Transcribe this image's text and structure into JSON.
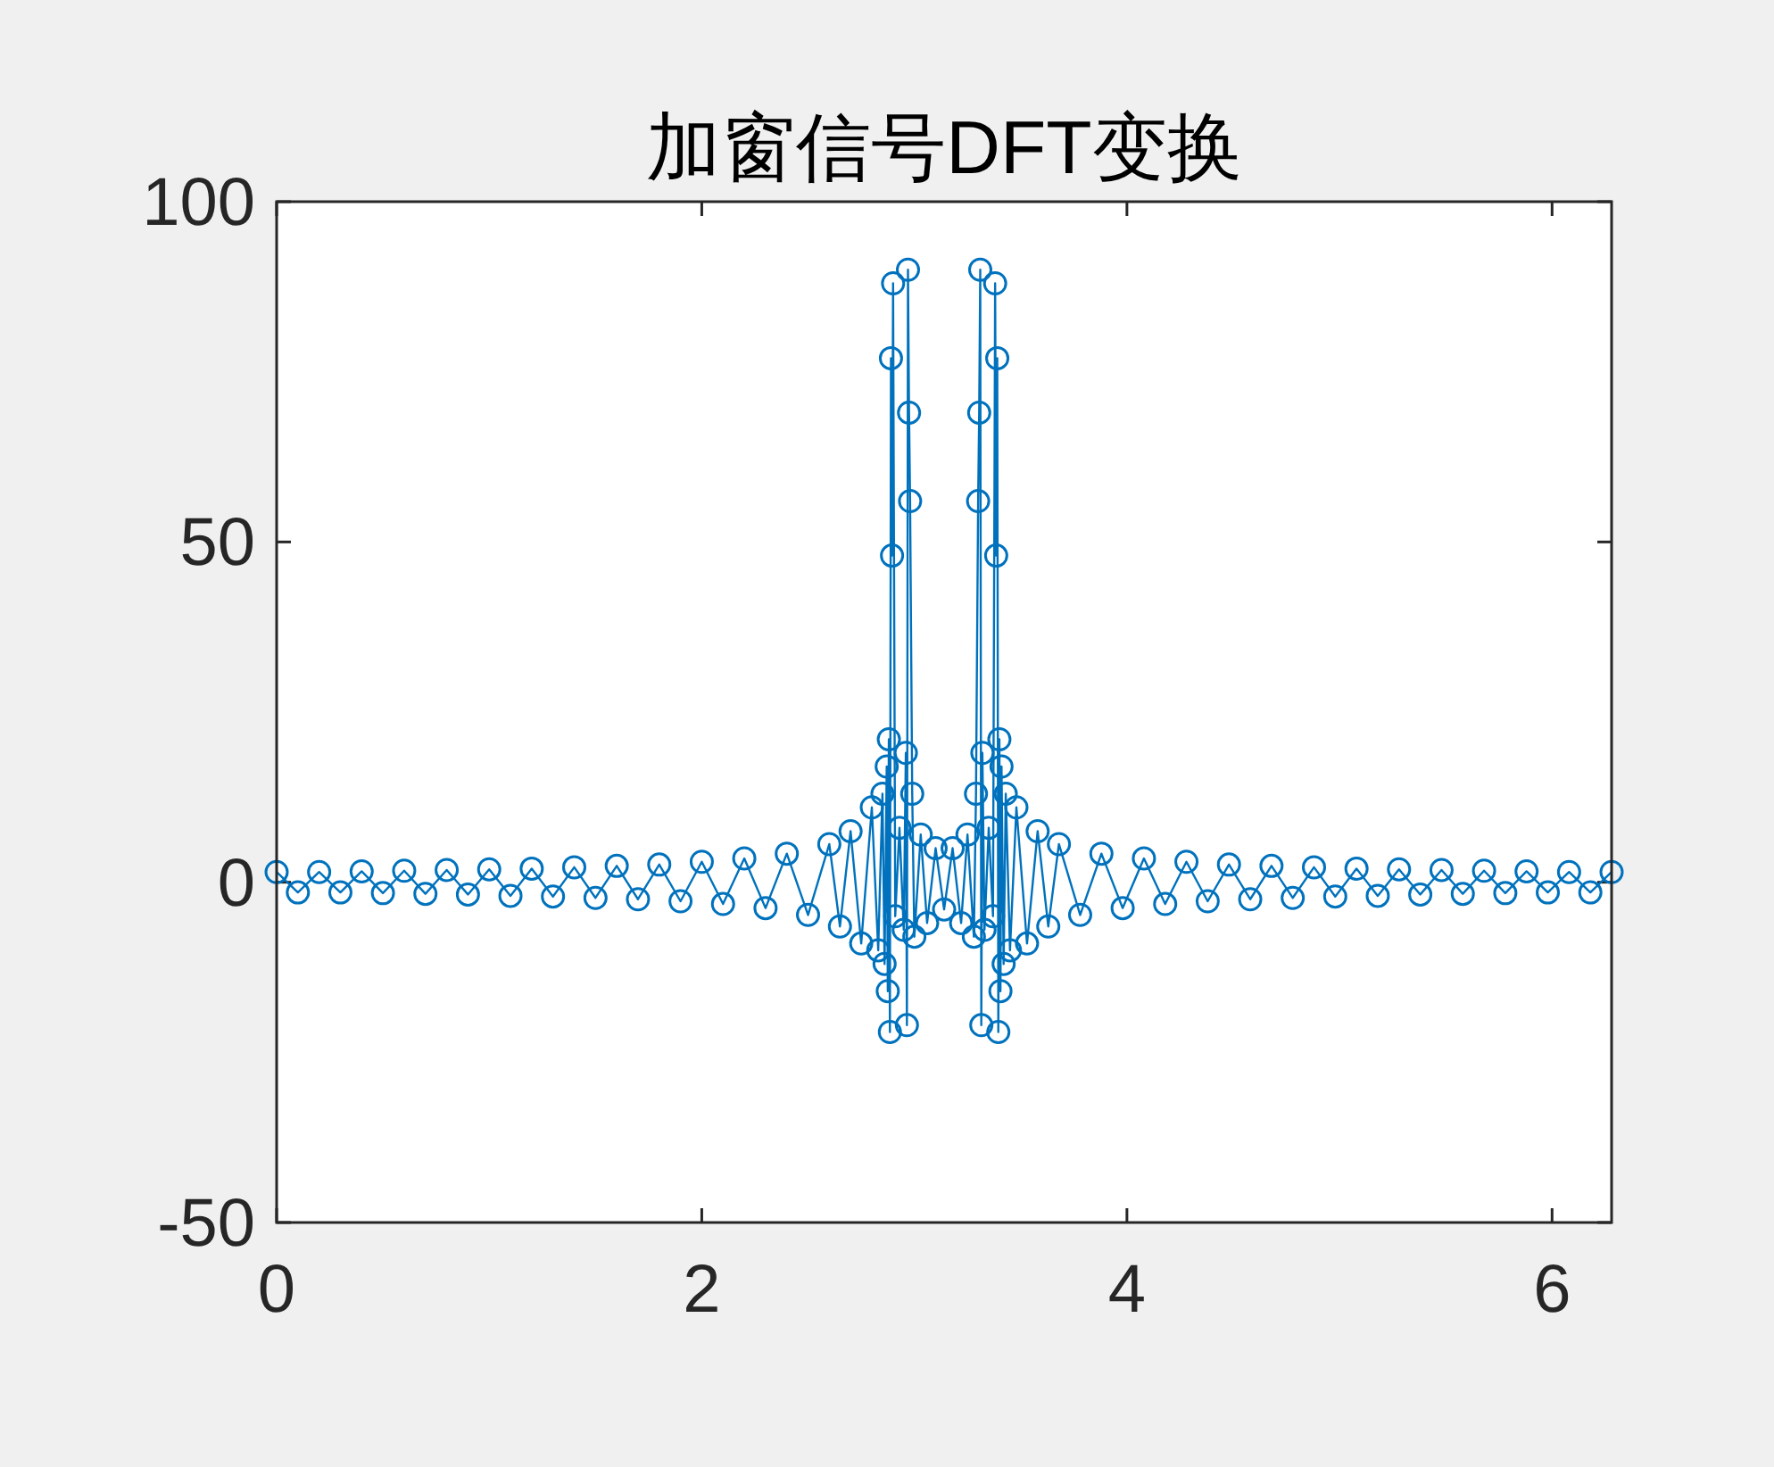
{
  "chart_data": {
    "type": "line",
    "title": "加窗信号DFT变换",
    "marker": "circle",
    "grid": false,
    "xlim": [
      0,
      6.28
    ],
    "ylim": [
      -50,
      100
    ],
    "xticks": [
      0,
      2,
      4,
      6
    ],
    "yticks": [
      -50,
      0,
      50,
      100
    ],
    "series": [
      {
        "color": "#0072bd",
        "x": [
          0,
          0.1,
          0.2,
          0.3,
          0.4,
          0.5,
          0.6,
          0.7,
          0.8,
          0.9,
          1.0,
          1.1,
          1.2,
          1.3,
          1.4,
          1.5,
          1.6,
          1.7,
          1.8,
          1.9,
          2.0,
          2.1,
          2.2,
          2.3,
          2.4,
          2.5,
          2.6,
          2.65,
          2.7,
          2.75,
          2.8,
          2.83,
          2.85,
          2.86,
          2.87,
          2.875,
          2.88,
          2.885,
          2.89,
          2.895,
          2.9,
          2.91,
          2.93,
          2.95,
          2.96,
          2.965,
          2.97,
          2.975,
          2.98,
          2.99,
          3.0,
          3.03,
          3.06,
          3.1,
          3.14,
          3.18,
          3.22,
          3.25,
          3.28,
          3.29,
          3.3,
          3.305,
          3.31,
          3.315,
          3.32,
          3.33,
          3.35,
          3.37,
          3.38,
          3.385,
          3.39,
          3.395,
          3.4,
          3.405,
          3.41,
          3.42,
          3.43,
          3.45,
          3.48,
          3.53,
          3.58,
          3.63,
          3.68,
          3.78,
          3.88,
          3.98,
          4.08,
          4.18,
          4.28,
          4.38,
          4.48,
          4.58,
          4.68,
          4.78,
          4.88,
          4.98,
          5.08,
          5.18,
          5.28,
          5.38,
          5.48,
          5.58,
          5.68,
          5.78,
          5.88,
          5.98,
          6.08,
          6.18,
          6.28
        ],
        "values": [
          1.5,
          -1.5,
          1.5,
          -1.5,
          1.6,
          -1.6,
          1.7,
          -1.7,
          1.8,
          -1.8,
          1.9,
          -2,
          2,
          -2.1,
          2.2,
          -2.3,
          2.4,
          -2.5,
          2.6,
          -2.8,
          3,
          -3.2,
          3.5,
          -3.8,
          4.2,
          -4.8,
          5.6,
          -6.5,
          7.5,
          -9,
          11,
          -10,
          13,
          -12,
          17,
          -16,
          21,
          -22,
          77,
          48,
          88,
          -5,
          8,
          -7,
          19,
          -21,
          90,
          69,
          56,
          13,
          -8,
          7,
          -6,
          5,
          -4,
          5,
          -6,
          7,
          -8,
          13,
          56,
          69,
          90,
          -21,
          19,
          -7,
          8,
          -5,
          88,
          48,
          77,
          -22,
          21,
          -16,
          17,
          -12,
          13,
          -10,
          11,
          -9,
          7.5,
          -6.5,
          5.6,
          -4.8,
          4.2,
          -3.8,
          3.5,
          -3.2,
          3,
          -2.8,
          2.6,
          -2.5,
          2.4,
          -2.3,
          2.2,
          -2.1,
          2,
          -2,
          1.9,
          -1.8,
          1.8,
          -1.7,
          1.7,
          -1.6,
          1.6,
          -1.5,
          1.5,
          -1.5,
          1.5
        ]
      }
    ]
  }
}
